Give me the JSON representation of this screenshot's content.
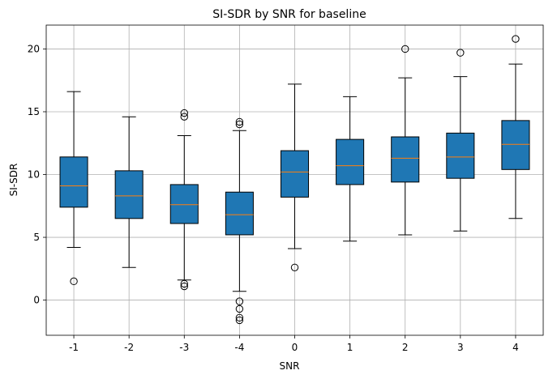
{
  "chart_data": {
    "type": "box",
    "title": "SI-SDR by SNR for baseline",
    "xlabel": "SNR",
    "ylabel": "SI-SDR",
    "ylim": [
      -2.8,
      21.9
    ],
    "yticks": [
      0,
      5,
      10,
      15,
      20
    ],
    "grid": true,
    "box_color": "#1f77b4",
    "median_color": "#ff7f0e",
    "categories": [
      "-1",
      "-2",
      "-3",
      "-4",
      "0",
      "1",
      "2",
      "3",
      "4"
    ],
    "boxes": [
      {
        "category": "-1",
        "whisker_low": 4.2,
        "q1": 7.4,
        "median": 9.1,
        "q3": 11.4,
        "whisker_high": 16.6,
        "outliers": [
          1.5
        ]
      },
      {
        "category": "-2",
        "whisker_low": 2.6,
        "q1": 6.5,
        "median": 8.3,
        "q3": 10.3,
        "whisker_high": 14.6,
        "outliers": []
      },
      {
        "category": "-3",
        "whisker_low": 1.6,
        "q1": 6.1,
        "median": 7.6,
        "q3": 9.2,
        "whisker_high": 13.1,
        "outliers": [
          1.1,
          1.3,
          14.6,
          14.9
        ]
      },
      {
        "category": "-4",
        "whisker_low": 0.7,
        "q1": 5.2,
        "median": 6.8,
        "q3": 8.6,
        "whisker_high": 13.5,
        "outliers": [
          -0.1,
          -0.7,
          -1.4,
          -1.6,
          14.0,
          14.2
        ]
      },
      {
        "category": "0",
        "whisker_low": 4.1,
        "q1": 8.2,
        "median": 10.2,
        "q3": 11.9,
        "whisker_high": 17.2,
        "outliers": [
          2.6
        ]
      },
      {
        "category": "1",
        "whisker_low": 4.7,
        "q1": 9.2,
        "median": 10.7,
        "q3": 12.8,
        "whisker_high": 16.2,
        "outliers": []
      },
      {
        "category": "2",
        "whisker_low": 5.2,
        "q1": 9.4,
        "median": 11.3,
        "q3": 13.0,
        "whisker_high": 17.7,
        "outliers": [
          20.0
        ]
      },
      {
        "category": "3",
        "whisker_low": 5.5,
        "q1": 9.7,
        "median": 11.4,
        "q3": 13.3,
        "whisker_high": 17.8,
        "outliers": [
          19.7
        ]
      },
      {
        "category": "4",
        "whisker_low": 6.5,
        "q1": 10.4,
        "median": 12.4,
        "q3": 14.3,
        "whisker_high": 18.8,
        "outliers": [
          20.8
        ]
      }
    ]
  }
}
